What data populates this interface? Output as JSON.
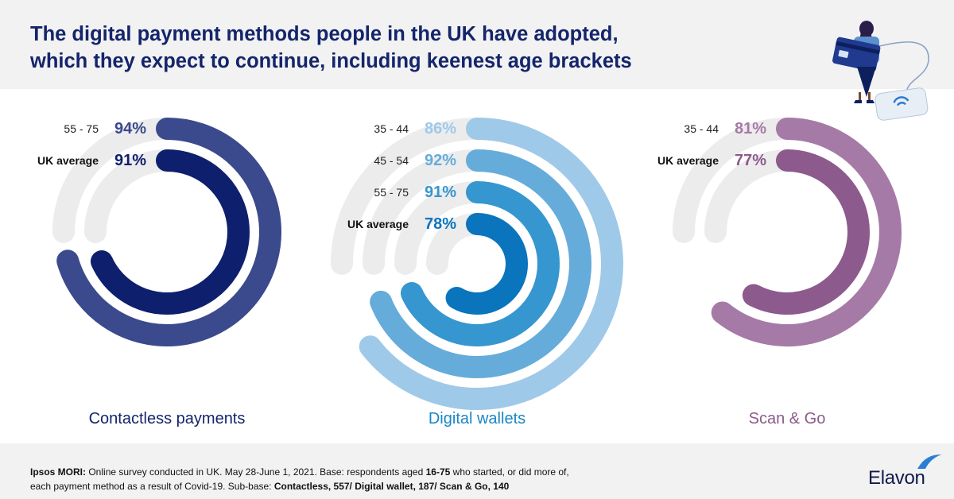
{
  "header": {
    "title_line1": "The digital payment methods people in the UK have adopted,",
    "title_line2": "which they expect to continue, including keenest age brackets"
  },
  "chart_data": [
    {
      "type": "radial-bar",
      "title": "Contactless payments",
      "title_color": "#14256b",
      "series": [
        {
          "name": "55 - 75",
          "value": 94,
          "color": "#3b4a8c",
          "is_average": false
        },
        {
          "name": "UK average",
          "value": 91,
          "color": "#0e1f6e",
          "is_average": true
        }
      ]
    },
    {
      "type": "radial-bar",
      "title": "Digital wallets",
      "title_color": "#1b86c6",
      "series": [
        {
          "name": "35 - 44",
          "value": 86,
          "color": "#9fc9e8",
          "is_average": false
        },
        {
          "name": "45 - 54",
          "value": 92,
          "color": "#66acda",
          "is_average": false
        },
        {
          "name": "55 - 75",
          "value": 91,
          "color": "#3696cf",
          "is_average": false
        },
        {
          "name": "UK average",
          "value": 78,
          "color": "#0a74bd",
          "is_average": true
        }
      ]
    },
    {
      "type": "radial-bar",
      "title": "Scan & Go",
      "title_color": "#8c5a8c",
      "series": [
        {
          "name": "35 - 44",
          "value": 81,
          "color": "#a57aa6",
          "is_average": false
        },
        {
          "name": "UK average",
          "value": 77,
          "color": "#8c5a8c",
          "is_average": true
        }
      ]
    }
  ],
  "footer": {
    "source_label": "Ipsos MORI:",
    "text_a": " Online survey conducted in UK. May 28-June 1, 2021. Base: respondents aged ",
    "age_range": "16-75",
    "text_b": " who started, or did more of,",
    "text_c": "each payment method as a result of Covid-19. Sub-base: ",
    "subbase": "Contactless, 557/ Digital wallet, 187/ Scan & Go, 140"
  },
  "logo": {
    "text": "Elavon"
  },
  "colors": {
    "track": "#ececec",
    "header_bg": "#f2f2f2",
    "title": "#14256b"
  }
}
